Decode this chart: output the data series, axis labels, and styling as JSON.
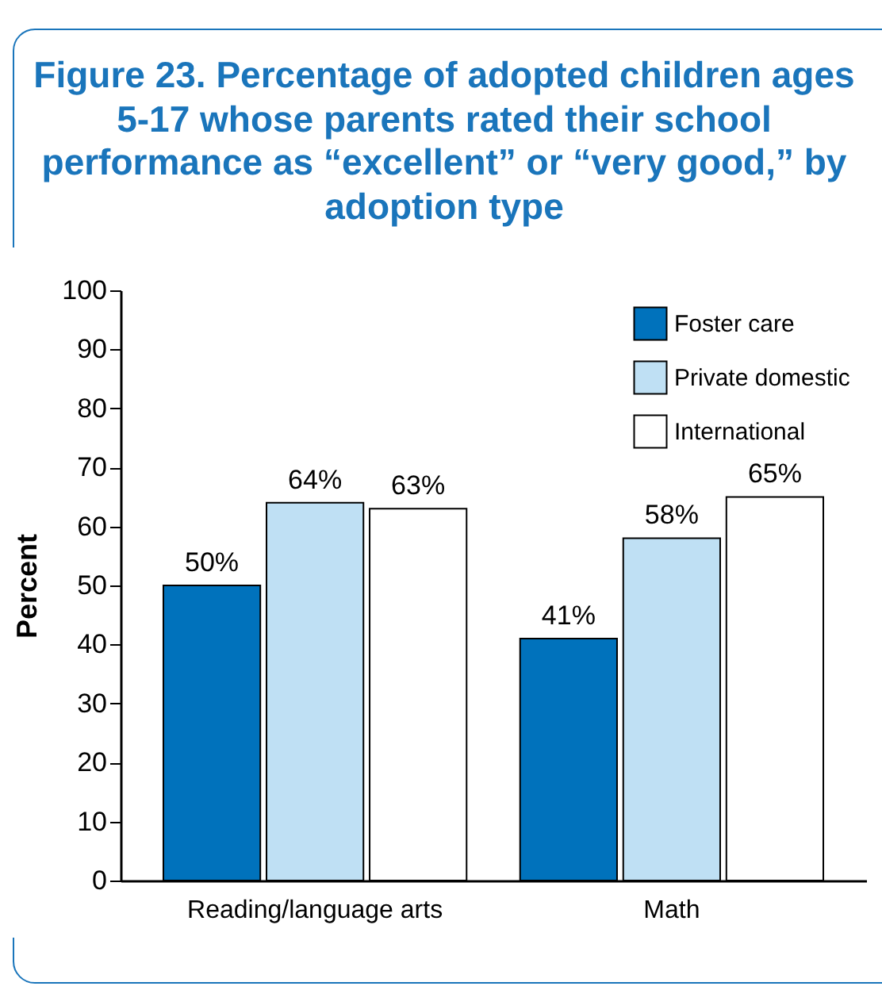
{
  "chart_data": {
    "type": "bar",
    "title": "Figure 23. Percentage of adopted children ages 5-17 whose parents rated their school performance as “excellent” or “very good,” by adoption type",
    "ylabel": "Percent",
    "categories": [
      "Reading/language arts",
      "Math"
    ],
    "series": [
      {
        "name": "Foster care",
        "color": "#0072bc",
        "values": [
          50,
          41
        ],
        "value_labels": [
          "50%",
          "41%"
        ]
      },
      {
        "name": "Private domestic",
        "color": "#bfe0f4",
        "values": [
          64,
          58
        ],
        "value_labels": [
          "64%",
          "58%"
        ]
      },
      {
        "name": "International",
        "color": "#ffffff",
        "values": [
          63,
          65
        ],
        "value_labels": [
          "63%",
          "65%"
        ]
      }
    ],
    "ylim": [
      0,
      100
    ],
    "yticks": [
      0,
      10,
      20,
      30,
      40,
      50,
      60,
      70,
      80,
      90,
      100
    ],
    "grid": false,
    "legend": "top right"
  }
}
